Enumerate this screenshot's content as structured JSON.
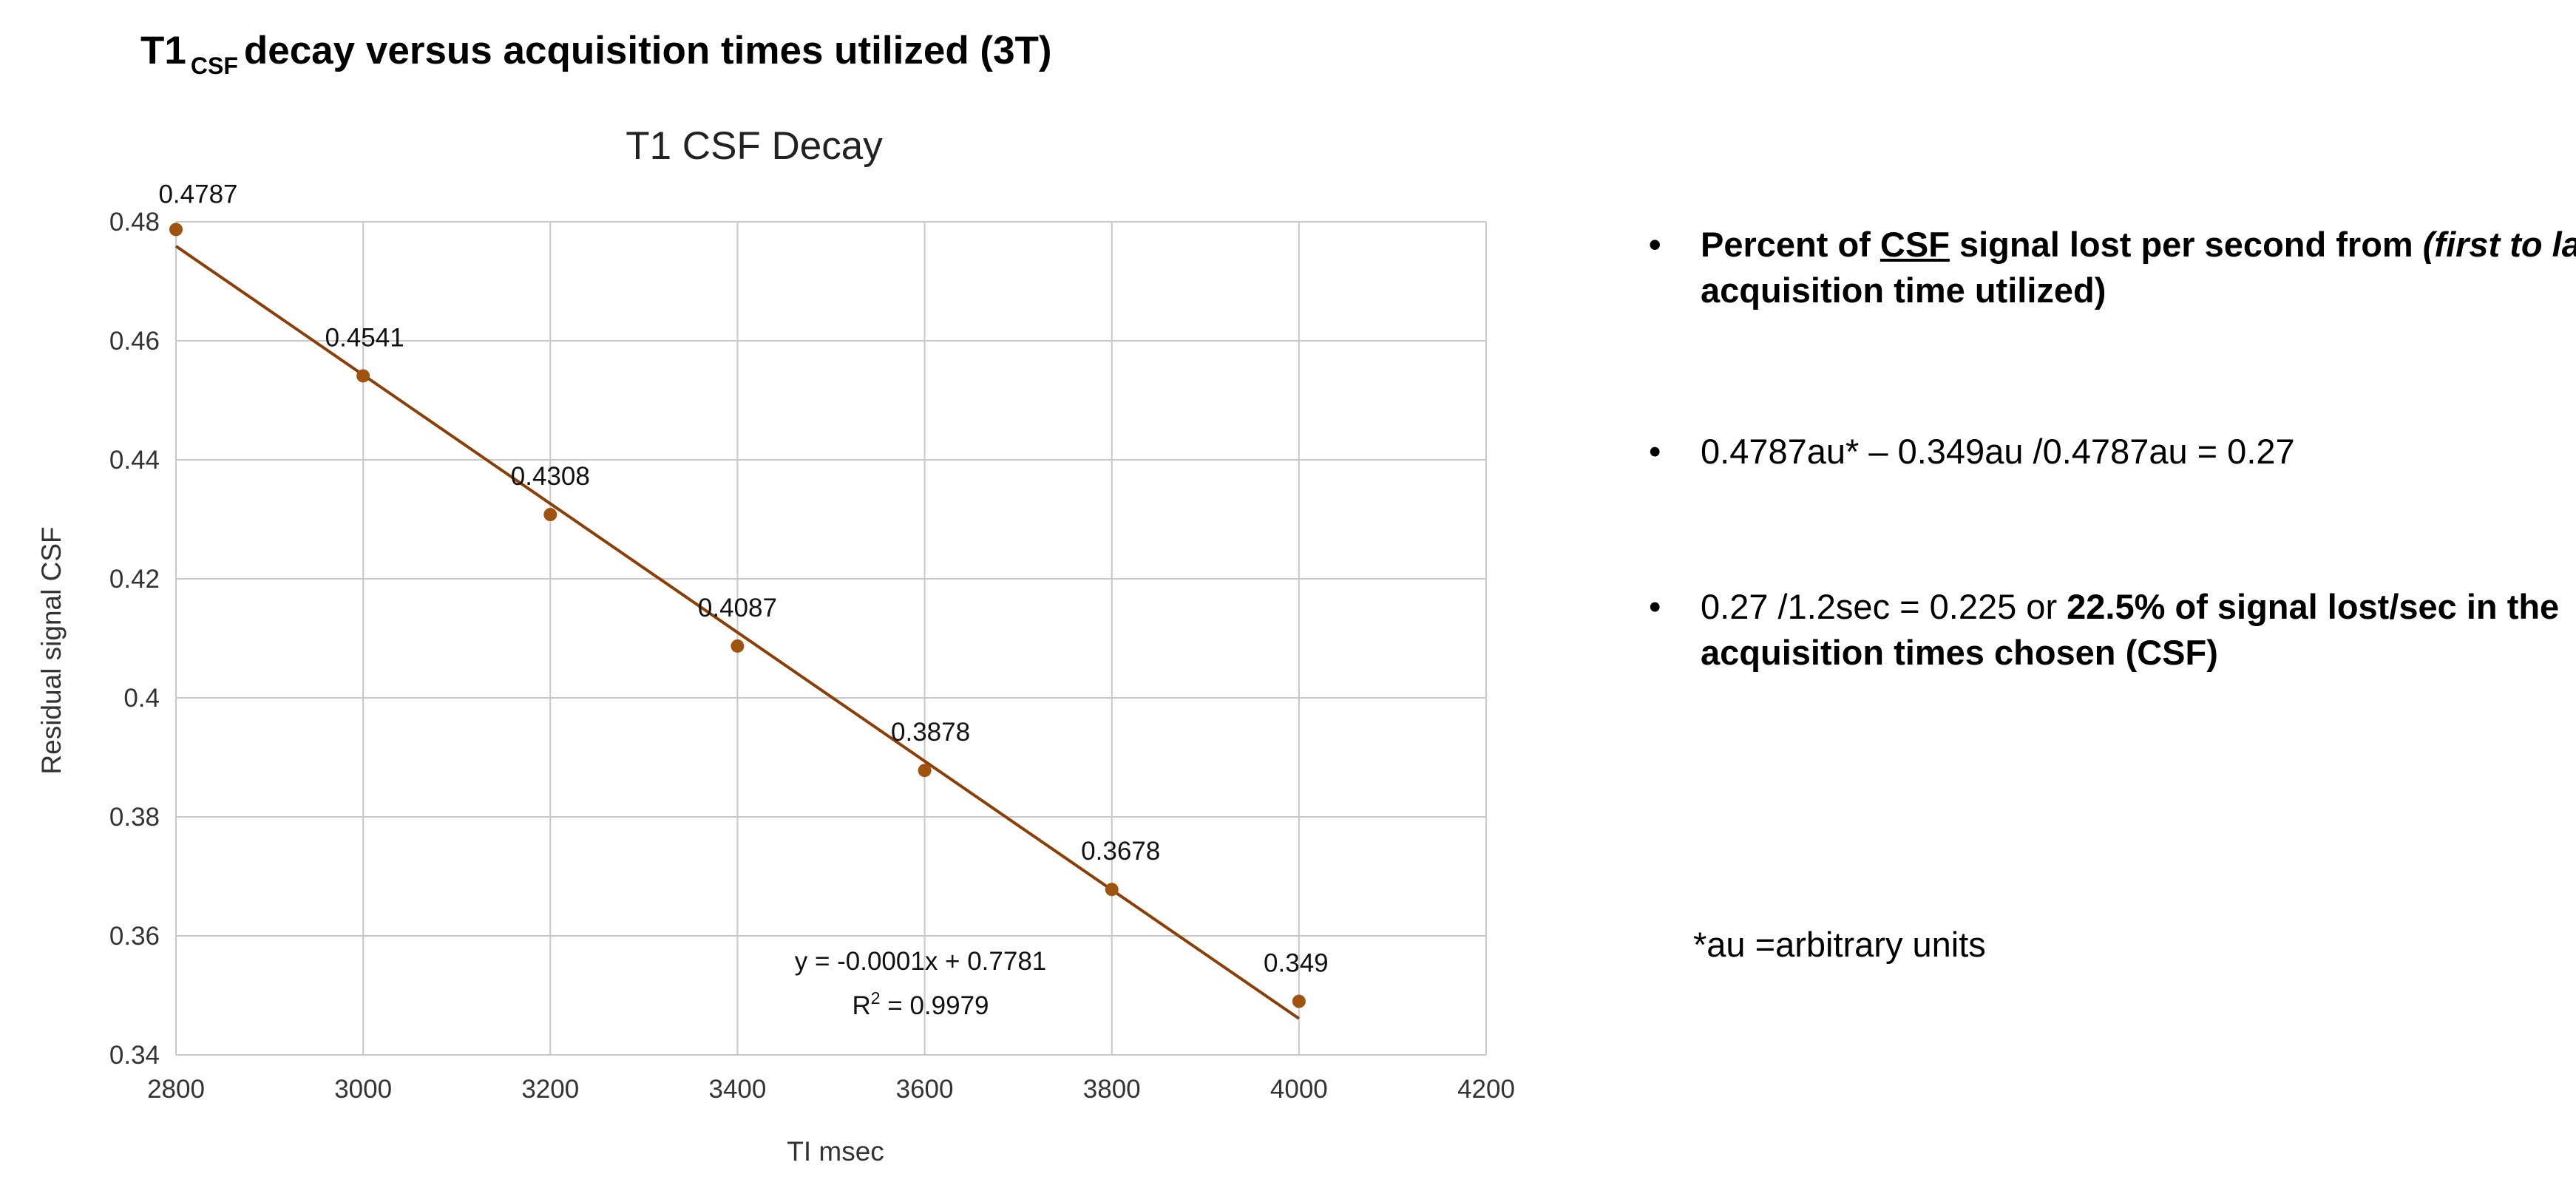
{
  "header": {
    "title_prefix": "T1",
    "title_sub": "CSF",
    "title_suffix": "decay versus acquisition times utilized (3T)"
  },
  "chart_data": {
    "type": "scatter",
    "title": "T1 CSF Decay",
    "xlabel": "TI msec",
    "ylabel": "Residual signal CSF",
    "xlim": [
      2800,
      4200
    ],
    "ylim": [
      0.34,
      0.48
    ],
    "xticks": [
      2800,
      3000,
      3200,
      3400,
      3600,
      3800,
      4000,
      4200
    ],
    "yticks": [
      0.34,
      0.36,
      0.38,
      0.4,
      0.42,
      0.44,
      0.46,
      0.48
    ],
    "ytick_labels": [
      "0.34",
      "0.36",
      "0.38",
      "0.4",
      "0.42",
      "0.44",
      "0.46",
      "0.48"
    ],
    "grid": true,
    "series": [
      {
        "name": "Residual signal CSF",
        "color": "#a0520f",
        "x": [
          2800,
          3000,
          3200,
          3400,
          3600,
          3800,
          4000
        ],
        "y": [
          0.4787,
          0.4541,
          0.4308,
          0.4087,
          0.3878,
          0.3678,
          0.349
        ],
        "labels": [
          "0.4787",
          "0.4541",
          "0.4308",
          "0.4087",
          "0.3878",
          "0.3678",
          "0.349"
        ]
      }
    ],
    "trendline": {
      "color": "#8b3f06",
      "x": [
        2800,
        4000
      ],
      "y": [
        0.4759,
        0.3461
      ],
      "equation": "y = -0.0001x + 0.7781",
      "r2_prefix": "R",
      "r2_sup": "2",
      "r2_value": " = 0.9979"
    }
  },
  "notes": {
    "bullet_glyph": "•",
    "b1_a": "Percent of ",
    "b1_csf": "CSF",
    "b1_b": " signal lost per second from ",
    "b1_italic": "(first to last",
    "b1_c": " acquisition time utilized)",
    "b2": "0.4787au* – 0.349au /0.4787au = 0.27",
    "b3_a": "0.27 /1.2sec =  0.225 or ",
    "b3_bold": "22.5% of signal lost/sec in the acquisition times chosen (CSF)",
    "footnote": "*au =arbitrary units"
  }
}
